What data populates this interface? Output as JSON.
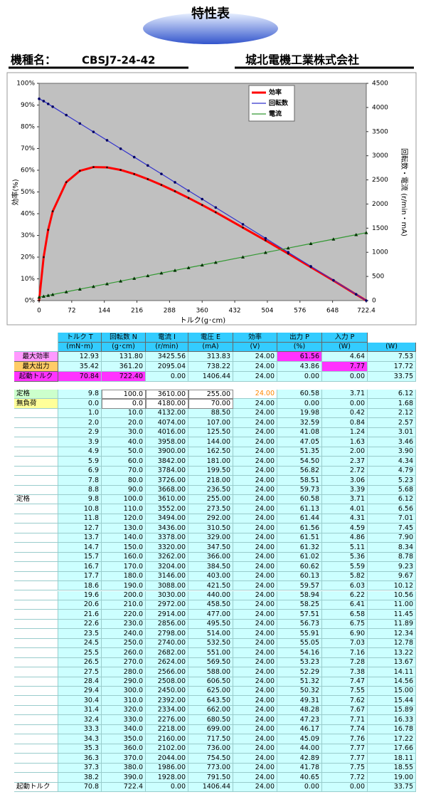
{
  "header": {
    "title": "特性表",
    "model_label": "機種名：",
    "model": "CBSJ7-24-42",
    "company": "城北電機工業株式会社"
  },
  "chart_data": {
    "type": "line",
    "x_label": "トルク(g･cm)",
    "y_label": "効率(%)",
    "y2_label": "回転数・電流 (r/min・mA)",
    "x": [
      0,
      10,
      20,
      30,
      60,
      90,
      120,
      150,
      180,
      210,
      240,
      270,
      300,
      330,
      360,
      390,
      450,
      500,
      550,
      600,
      650,
      700,
      722.4
    ],
    "series": [
      {
        "name": "効率",
        "color": "#ff0000",
        "values": [
          0,
          19.98,
          32.59,
          41.08,
          54.5,
          59.73,
          61.44,
          61.32,
          60.13,
          58.25,
          55.91,
          53.23,
          50.32,
          47.23,
          44.0,
          40.65,
          33.6,
          27.7,
          21.6,
          15.4,
          9.2,
          2.8,
          0
        ]
      },
      {
        "name": "回転数",
        "color": "#3333cc",
        "axis": "y2",
        "values": [
          4180,
          4132,
          4074,
          4016,
          3842,
          3668,
          3494,
          3320,
          3146,
          2972,
          2798,
          2624,
          2450,
          2276,
          2102,
          1928,
          1580,
          1290,
          1000,
          710,
          420,
          130,
          0
        ]
      },
      {
        "name": "電流",
        "color": "#339933",
        "axis": "y2",
        "values": [
          70,
          88.5,
          107,
          125.5,
          181,
          236.5,
          292,
          347.5,
          403,
          458.5,
          514,
          569.5,
          625,
          680.5,
          736,
          791.5,
          902.5,
          995,
          1087.5,
          1180,
          1272.5,
          1365,
          1406.44
        ]
      }
    ],
    "xlim": [
      0,
      722.4
    ],
    "xticks": [
      0,
      72,
      144,
      216,
      288,
      360,
      432,
      504,
      576,
      648,
      722.4
    ],
    "ylim": [
      0,
      100
    ],
    "yticks": [
      {
        "value": 0,
        "label": "0%"
      },
      {
        "value": 10,
        "label": "10%"
      },
      {
        "value": 20,
        "label": "20%"
      },
      {
        "value": 30,
        "label": "30%"
      },
      {
        "value": 40,
        "label": "40%"
      },
      {
        "value": 50,
        "label": "50%"
      },
      {
        "value": 60,
        "label": "60%"
      },
      {
        "value": 70,
        "label": "70%"
      },
      {
        "value": 80,
        "label": "80%"
      },
      {
        "value": 90,
        "label": "90%"
      },
      {
        "value": 100,
        "label": "100%"
      }
    ],
    "y2lim": [
      0,
      4500
    ],
    "y2ticks": [
      0,
      500,
      1000,
      1500,
      2000,
      2500,
      3000,
      3500,
      4000,
      4500
    ],
    "grid": false,
    "legend": "top-right"
  },
  "summary_table": {
    "columns": [
      "トルク T",
      "回転数 N",
      "電流 I",
      "電圧 E",
      "効率",
      "出力 P",
      "入力 P"
    ],
    "units": [
      "(mN･m)",
      "(g･cm)",
      "(r/min)",
      "(mA)",
      "(V)",
      "(%)",
      "(W)",
      "(W)"
    ],
    "rows": [
      {
        "label": "最大効率",
        "cells": [
          "12.93",
          "131.80",
          "3425.56",
          "313.83",
          "24.00",
          "61.56",
          "4.64",
          "7.53"
        ]
      },
      {
        "label": "最大出力",
        "cells": [
          "35.42",
          "361.20",
          "2095.04",
          "738.22",
          "24.00",
          "43.86",
          "7.77",
          "17.72"
        ]
      },
      {
        "label": "起動トルク",
        "cells": [
          "70.84",
          "722.40",
          "0.00",
          "1406.44",
          "24.00",
          "0.00",
          "0.00",
          "33.75"
        ]
      }
    ]
  },
  "data_table": {
    "rows": [
      {
        "label": "定格",
        "cells": [
          "9.8",
          "100.0",
          "3610.00",
          "255.00",
          "24.00",
          "60.58",
          "3.71",
          "6.12"
        ]
      },
      {
        "label": "無負荷",
        "cells": [
          "0.0",
          "0.0",
          "4180.00",
          "70.00",
          "24.00",
          "0.00",
          "0.00",
          "1.68"
        ]
      },
      {
        "cells": [
          "1.0",
          "10.0",
          "4132.00",
          "88.50",
          "24.00",
          "19.98",
          "0.42",
          "2.12"
        ]
      },
      {
        "cells": [
          "2.0",
          "20.0",
          "4074.00",
          "107.00",
          "24.00",
          "32.59",
          "0.84",
          "2.57"
        ]
      },
      {
        "cells": [
          "2.9",
          "30.0",
          "4016.00",
          "125.50",
          "24.00",
          "41.08",
          "1.24",
          "3.01"
        ]
      },
      {
        "cells": [
          "3.9",
          "40.0",
          "3958.00",
          "144.00",
          "24.00",
          "47.05",
          "1.63",
          "3.46"
        ]
      },
      {
        "cells": [
          "4.9",
          "50.0",
          "3900.00",
          "162.50",
          "24.00",
          "51.35",
          "2.00",
          "3.90"
        ]
      },
      {
        "cells": [
          "5.9",
          "60.0",
          "3842.00",
          "181.00",
          "24.00",
          "54.50",
          "2.37",
          "4.34"
        ]
      },
      {
        "cells": [
          "6.9",
          "70.0",
          "3784.00",
          "199.50",
          "24.00",
          "56.82",
          "2.72",
          "4.79"
        ]
      },
      {
        "cells": [
          "7.8",
          "80.0",
          "3726.00",
          "218.00",
          "24.00",
          "58.51",
          "3.06",
          "5.23"
        ]
      },
      {
        "cells": [
          "8.8",
          "90.0",
          "3668.00",
          "236.50",
          "24.00",
          "59.73",
          "3.39",
          "5.68"
        ]
      },
      {
        "label": "定格",
        "cells": [
          "9.8",
          "100.0",
          "3610.00",
          "255.00",
          "24.00",
          "60.58",
          "3.71",
          "6.12"
        ]
      },
      {
        "cells": [
          "10.8",
          "110.0",
          "3552.00",
          "273.50",
          "24.00",
          "61.13",
          "4.01",
          "6.56"
        ]
      },
      {
        "cells": [
          "11.8",
          "120.0",
          "3494.00",
          "292.00",
          "24.00",
          "61.44",
          "4.31",
          "7.01"
        ]
      },
      {
        "cells": [
          "12.7",
          "130.0",
          "3436.00",
          "310.50",
          "24.00",
          "61.56",
          "4.59",
          "7.45"
        ]
      },
      {
        "cells": [
          "13.7",
          "140.0",
          "3378.00",
          "329.00",
          "24.00",
          "61.51",
          "4.86",
          "7.90"
        ]
      },
      {
        "cells": [
          "14.7",
          "150.0",
          "3320.00",
          "347.50",
          "24.00",
          "61.32",
          "5.11",
          "8.34"
        ]
      },
      {
        "cells": [
          "15.7",
          "160.0",
          "3262.00",
          "366.00",
          "24.00",
          "61.02",
          "5.36",
          "8.78"
        ]
      },
      {
        "cells": [
          "16.7",
          "170.0",
          "3204.00",
          "384.50",
          "24.00",
          "60.62",
          "5.59",
          "9.23"
        ]
      },
      {
        "cells": [
          "17.7",
          "180.0",
          "3146.00",
          "403.00",
          "24.00",
          "60.13",
          "5.82",
          "9.67"
        ]
      },
      {
        "cells": [
          "18.6",
          "190.0",
          "3088.00",
          "421.50",
          "24.00",
          "59.57",
          "6.03",
          "10.12"
        ]
      },
      {
        "cells": [
          "19.6",
          "200.0",
          "3030.00",
          "440.00",
          "24.00",
          "58.94",
          "6.22",
          "10.56"
        ]
      },
      {
        "cells": [
          "20.6",
          "210.0",
          "2972.00",
          "458.50",
          "24.00",
          "58.25",
          "6.41",
          "11.00"
        ]
      },
      {
        "cells": [
          "21.6",
          "220.0",
          "2914.00",
          "477.00",
          "24.00",
          "57.51",
          "6.58",
          "11.45"
        ]
      },
      {
        "cells": [
          "22.6",
          "230.0",
          "2856.00",
          "495.50",
          "24.00",
          "56.73",
          "6.75",
          "11.89"
        ]
      },
      {
        "cells": [
          "23.5",
          "240.0",
          "2798.00",
          "514.00",
          "24.00",
          "55.91",
          "6.90",
          "12.34"
        ]
      },
      {
        "cells": [
          "24.5",
          "250.0",
          "2740.00",
          "532.50",
          "24.00",
          "55.05",
          "7.03",
          "12.78"
        ]
      },
      {
        "cells": [
          "25.5",
          "260.0",
          "2682.00",
          "551.00",
          "24.00",
          "54.16",
          "7.16",
          "13.22"
        ]
      },
      {
        "cells": [
          "26.5",
          "270.0",
          "2624.00",
          "569.50",
          "24.00",
          "53.23",
          "7.28",
          "13.67"
        ]
      },
      {
        "cells": [
          "27.5",
          "280.0",
          "2566.00",
          "588.00",
          "24.00",
          "52.29",
          "7.38",
          "14.11"
        ]
      },
      {
        "cells": [
          "28.4",
          "290.0",
          "2508.00",
          "606.50",
          "24.00",
          "51.32",
          "7.47",
          "14.56"
        ]
      },
      {
        "cells": [
          "29.4",
          "300.0",
          "2450.00",
          "625.00",
          "24.00",
          "50.32",
          "7.55",
          "15.00"
        ]
      },
      {
        "cells": [
          "30.4",
          "310.0",
          "2392.00",
          "643.50",
          "24.00",
          "49.31",
          "7.62",
          "15.44"
        ]
      },
      {
        "cells": [
          "31.4",
          "320.0",
          "2334.00",
          "662.00",
          "24.00",
          "48.28",
          "7.67",
          "15.89"
        ]
      },
      {
        "cells": [
          "32.4",
          "330.0",
          "2276.00",
          "680.50",
          "24.00",
          "47.23",
          "7.71",
          "16.33"
        ]
      },
      {
        "cells": [
          "33.3",
          "340.0",
          "2218.00",
          "699.00",
          "24.00",
          "46.17",
          "7.74",
          "16.78"
        ]
      },
      {
        "cells": [
          "34.3",
          "350.0",
          "2160.00",
          "717.50",
          "24.00",
          "45.09",
          "7.76",
          "17.22"
        ]
      },
      {
        "cells": [
          "35.3",
          "360.0",
          "2102.00",
          "736.00",
          "24.00",
          "44.00",
          "7.77",
          "17.66"
        ]
      },
      {
        "cells": [
          "36.3",
          "370.0",
          "2044.00",
          "754.50",
          "24.00",
          "42.89",
          "7.77",
          "18.11"
        ]
      },
      {
        "cells": [
          "37.3",
          "380.0",
          "1986.00",
          "773.00",
          "24.00",
          "41.78",
          "7.75",
          "18.55"
        ]
      },
      {
        "cells": [
          "38.2",
          "390.0",
          "1928.00",
          "791.50",
          "24.00",
          "40.65",
          "7.72",
          "19.00"
        ]
      },
      {
        "label": "起動トルク",
        "cells": [
          "70.8",
          "722.4",
          "0.00",
          "1406.44",
          "24.00",
          "0.00",
          "0.00",
          "33.75"
        ]
      }
    ]
  }
}
